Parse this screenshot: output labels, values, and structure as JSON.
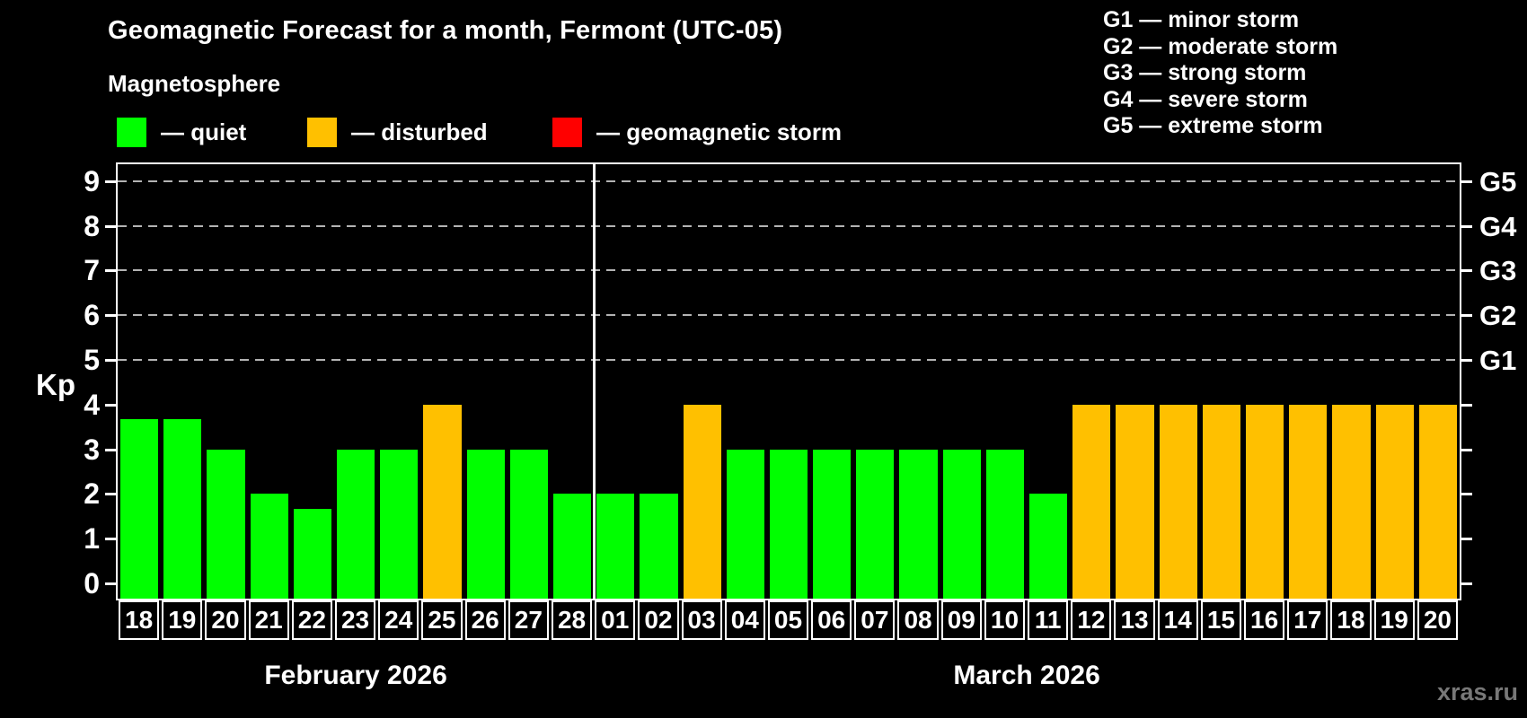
{
  "header": {
    "title": "Geomagnetic Forecast for a month, Fermont (UTC-05)",
    "subtitle": "Magnetosphere"
  },
  "legend": {
    "items": [
      {
        "name": "quiet",
        "label": "— quiet",
        "color": "#00ff00"
      },
      {
        "name": "disturbed",
        "label": "— disturbed",
        "color": "#ffc000"
      },
      {
        "name": "storm",
        "label": "— geomagnetic storm",
        "color": "#ff0000"
      }
    ]
  },
  "storm_scale": {
    "lines": [
      "G1 — minor storm",
      "G2 — moderate storm",
      "G3 — strong storm",
      "G4 — severe storm",
      "G5 — extreme storm"
    ]
  },
  "watermark": "xras.ru",
  "chart_data": {
    "type": "bar",
    "title": "Geomagnetic Forecast for a month, Fermont (UTC-05)",
    "ylabel": "Kp",
    "ylim": [
      0,
      9.4
    ],
    "yticks": [
      0,
      1,
      2,
      3,
      4,
      5,
      6,
      7,
      8,
      9
    ],
    "gridlines_dashed_at": [
      5,
      6,
      7,
      8,
      9
    ],
    "right_axis_labels": [
      {
        "kp": 5,
        "label": "G1"
      },
      {
        "kp": 6,
        "label": "G2"
      },
      {
        "kp": 7,
        "label": "G3"
      },
      {
        "kp": 8,
        "label": "G4"
      },
      {
        "kp": 9,
        "label": "G5"
      }
    ],
    "colors": {
      "quiet": "#00ff00",
      "disturbed": "#ffc000",
      "storm": "#ff0000"
    },
    "legend_position": "top-left",
    "grid": "dashed horizontal at Kp 5-9 only",
    "months": [
      {
        "label": "February 2026",
        "bars": [
          {
            "day": "18",
            "kp": 3.67,
            "status": "quiet"
          },
          {
            "day": "19",
            "kp": 3.67,
            "status": "quiet"
          },
          {
            "day": "20",
            "kp": 3,
            "status": "quiet"
          },
          {
            "day": "21",
            "kp": 2,
            "status": "quiet"
          },
          {
            "day": "22",
            "kp": 1.67,
            "status": "quiet"
          },
          {
            "day": "23",
            "kp": 3,
            "status": "quiet"
          },
          {
            "day": "24",
            "kp": 3,
            "status": "quiet"
          },
          {
            "day": "25",
            "kp": 4,
            "status": "disturbed"
          },
          {
            "day": "26",
            "kp": 3,
            "status": "quiet"
          },
          {
            "day": "27",
            "kp": 3,
            "status": "quiet"
          },
          {
            "day": "28",
            "kp": 2,
            "status": "quiet"
          }
        ]
      },
      {
        "label": "March 2026",
        "bars": [
          {
            "day": "01",
            "kp": 2,
            "status": "quiet"
          },
          {
            "day": "02",
            "kp": 2,
            "status": "quiet"
          },
          {
            "day": "03",
            "kp": 4,
            "status": "disturbed"
          },
          {
            "day": "04",
            "kp": 3,
            "status": "quiet"
          },
          {
            "day": "05",
            "kp": 3,
            "status": "quiet"
          },
          {
            "day": "06",
            "kp": 3,
            "status": "quiet"
          },
          {
            "day": "07",
            "kp": 3,
            "status": "quiet"
          },
          {
            "day": "08",
            "kp": 3,
            "status": "quiet"
          },
          {
            "day": "09",
            "kp": 3,
            "status": "quiet"
          },
          {
            "day": "10",
            "kp": 3,
            "status": "quiet"
          },
          {
            "day": "11",
            "kp": 2,
            "status": "quiet"
          },
          {
            "day": "12",
            "kp": 4,
            "status": "disturbed"
          },
          {
            "day": "13",
            "kp": 4,
            "status": "disturbed"
          },
          {
            "day": "14",
            "kp": 4,
            "status": "disturbed"
          },
          {
            "day": "15",
            "kp": 4,
            "status": "disturbed"
          },
          {
            "day": "16",
            "kp": 4,
            "status": "disturbed"
          },
          {
            "day": "17",
            "kp": 4,
            "status": "disturbed"
          },
          {
            "day": "18",
            "kp": 4,
            "status": "disturbed"
          },
          {
            "day": "19",
            "kp": 4,
            "status": "disturbed"
          },
          {
            "day": "20",
            "kp": 4,
            "status": "disturbed"
          }
        ]
      }
    ]
  }
}
